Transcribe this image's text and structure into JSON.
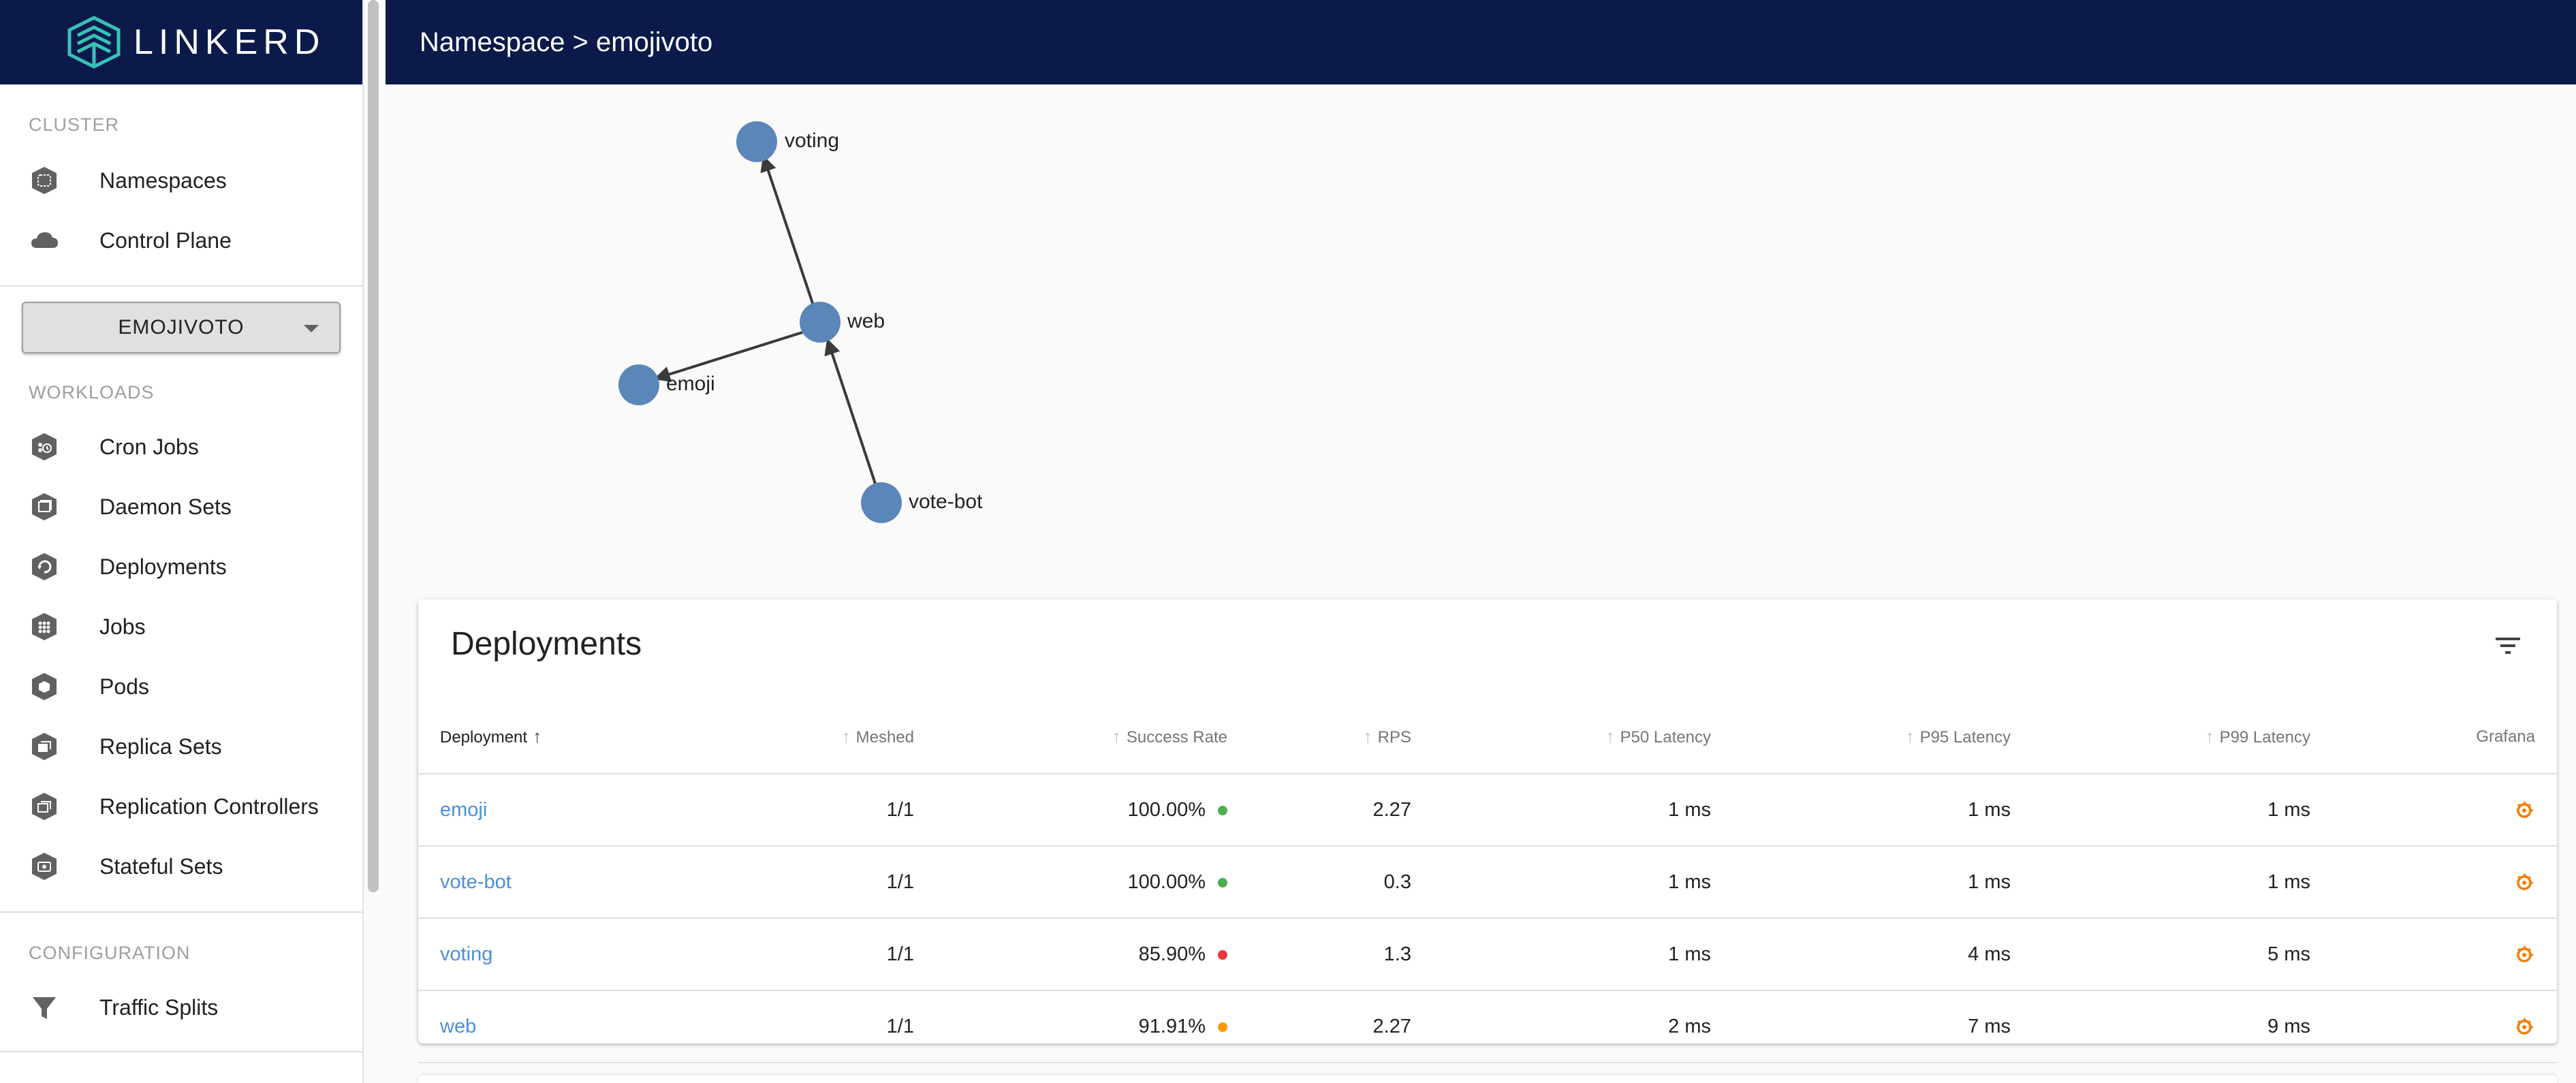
{
  "app": {
    "logo_text": "LINKERD"
  },
  "header": {
    "breadcrumb": "Namespace > emojivoto"
  },
  "sidebar": {
    "cluster_label": "CLUSTER",
    "cluster_items": [
      {
        "label": "Namespaces",
        "icon": "namespace-icon"
      },
      {
        "label": "Control Plane",
        "icon": "cloud-icon"
      }
    ],
    "namespace_select": {
      "value": "EMOJIVOTO"
    },
    "workloads_label": "WORKLOADS",
    "workload_items": [
      {
        "label": "Cron Jobs",
        "icon": "cronjob-icon"
      },
      {
        "label": "Daemon Sets",
        "icon": "daemonset-icon"
      },
      {
        "label": "Deployments",
        "icon": "deployment-icon"
      },
      {
        "label": "Jobs",
        "icon": "job-icon"
      },
      {
        "label": "Pods",
        "icon": "pod-icon"
      },
      {
        "label": "Replica Sets",
        "icon": "replicaset-icon"
      },
      {
        "label": "Replication Controllers",
        "icon": "replication-controller-icon"
      },
      {
        "label": "Stateful Sets",
        "icon": "statefulset-icon"
      }
    ],
    "configuration_label": "CONFIGURATION",
    "configuration_items": [
      {
        "label": "Traffic Splits",
        "icon": "filter-icon"
      }
    ]
  },
  "graph": {
    "nodes": [
      {
        "label": "voting"
      },
      {
        "label": "web"
      },
      {
        "label": "emoji"
      },
      {
        "label": "vote-bot"
      }
    ],
    "edges": [
      {
        "from": "web",
        "to": "voting"
      },
      {
        "from": "web",
        "to": "emoji"
      },
      {
        "from": "vote-bot",
        "to": "web"
      }
    ],
    "node_color": "#5b86b8"
  },
  "deployments": {
    "title": "Deployments",
    "columns": [
      "Deployment",
      "Meshed",
      "Success Rate",
      "RPS",
      "P50 Latency",
      "P95 Latency",
      "P99 Latency",
      "Grafana"
    ],
    "rows": [
      {
        "name": "emoji",
        "meshed": "1/1",
        "success_rate": "100.00%",
        "status": "green",
        "rps": "2.27",
        "p50": "1 ms",
        "p95": "1 ms",
        "p99": "1 ms"
      },
      {
        "name": "vote-bot",
        "meshed": "1/1",
        "success_rate": "100.00%",
        "status": "green",
        "rps": "0.3",
        "p50": "1 ms",
        "p95": "1 ms",
        "p99": "1 ms"
      },
      {
        "name": "voting",
        "meshed": "1/1",
        "success_rate": "85.90%",
        "status": "red",
        "rps": "1.3",
        "p50": "1 ms",
        "p95": "4 ms",
        "p99": "5 ms"
      },
      {
        "name": "web",
        "meshed": "1/1",
        "success_rate": "91.91%",
        "status": "orange",
        "rps": "2.27",
        "p50": "2 ms",
        "p95": "7 ms",
        "p99": "9 ms"
      }
    ],
    "status_colors": {
      "green": "#4caf50",
      "red": "#e53935",
      "orange": "#ff9800"
    }
  }
}
